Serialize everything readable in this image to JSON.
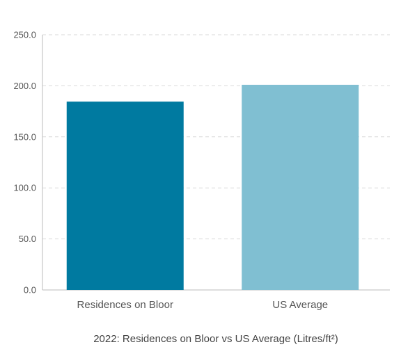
{
  "chart_data": {
    "type": "bar",
    "title": "2022: Residences on Bloor vs US Average (Litres/ft²)",
    "categories": [
      "Residences on Bloor",
      "US Average"
    ],
    "values": [
      184.5,
      201.0
    ],
    "colors": [
      "#007aa0",
      "#80bfd2"
    ],
    "ylim": [
      0,
      250
    ],
    "yticks": [
      "0.0",
      "50.0",
      "100.0",
      "150.0",
      "200.0",
      "250.0"
    ],
    "grid": true,
    "xlabel": "",
    "ylabel": ""
  }
}
